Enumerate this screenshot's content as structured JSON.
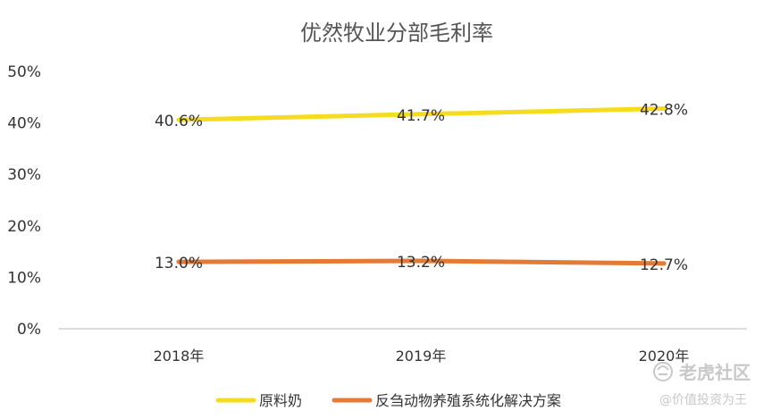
{
  "chart_data": {
    "type": "line",
    "title": "优然牧业分部毛利率",
    "categories": [
      "2018年",
      "2019年",
      "2020年"
    ],
    "ylim": [
      0,
      50
    ],
    "yticks": [
      "0%",
      "10%",
      "20%",
      "30%",
      "40%",
      "50%"
    ],
    "grid": false,
    "legend_position": "bottom",
    "series": [
      {
        "name": "原料奶",
        "values": [
          40.6,
          41.7,
          42.8
        ],
        "labels": [
          "40.6%",
          "41.7%",
          "42.8%"
        ],
        "color": "#f5dc1e"
      },
      {
        "name": "反刍动物养殖系统化解决方案",
        "values": [
          13.0,
          13.2,
          12.7
        ],
        "labels": [
          "13.0%",
          "13.2%",
          "12.7%"
        ],
        "color": "#e47a36"
      }
    ]
  },
  "watermark": {
    "brand": "老虎社区",
    "author": "@价值投资为王"
  }
}
